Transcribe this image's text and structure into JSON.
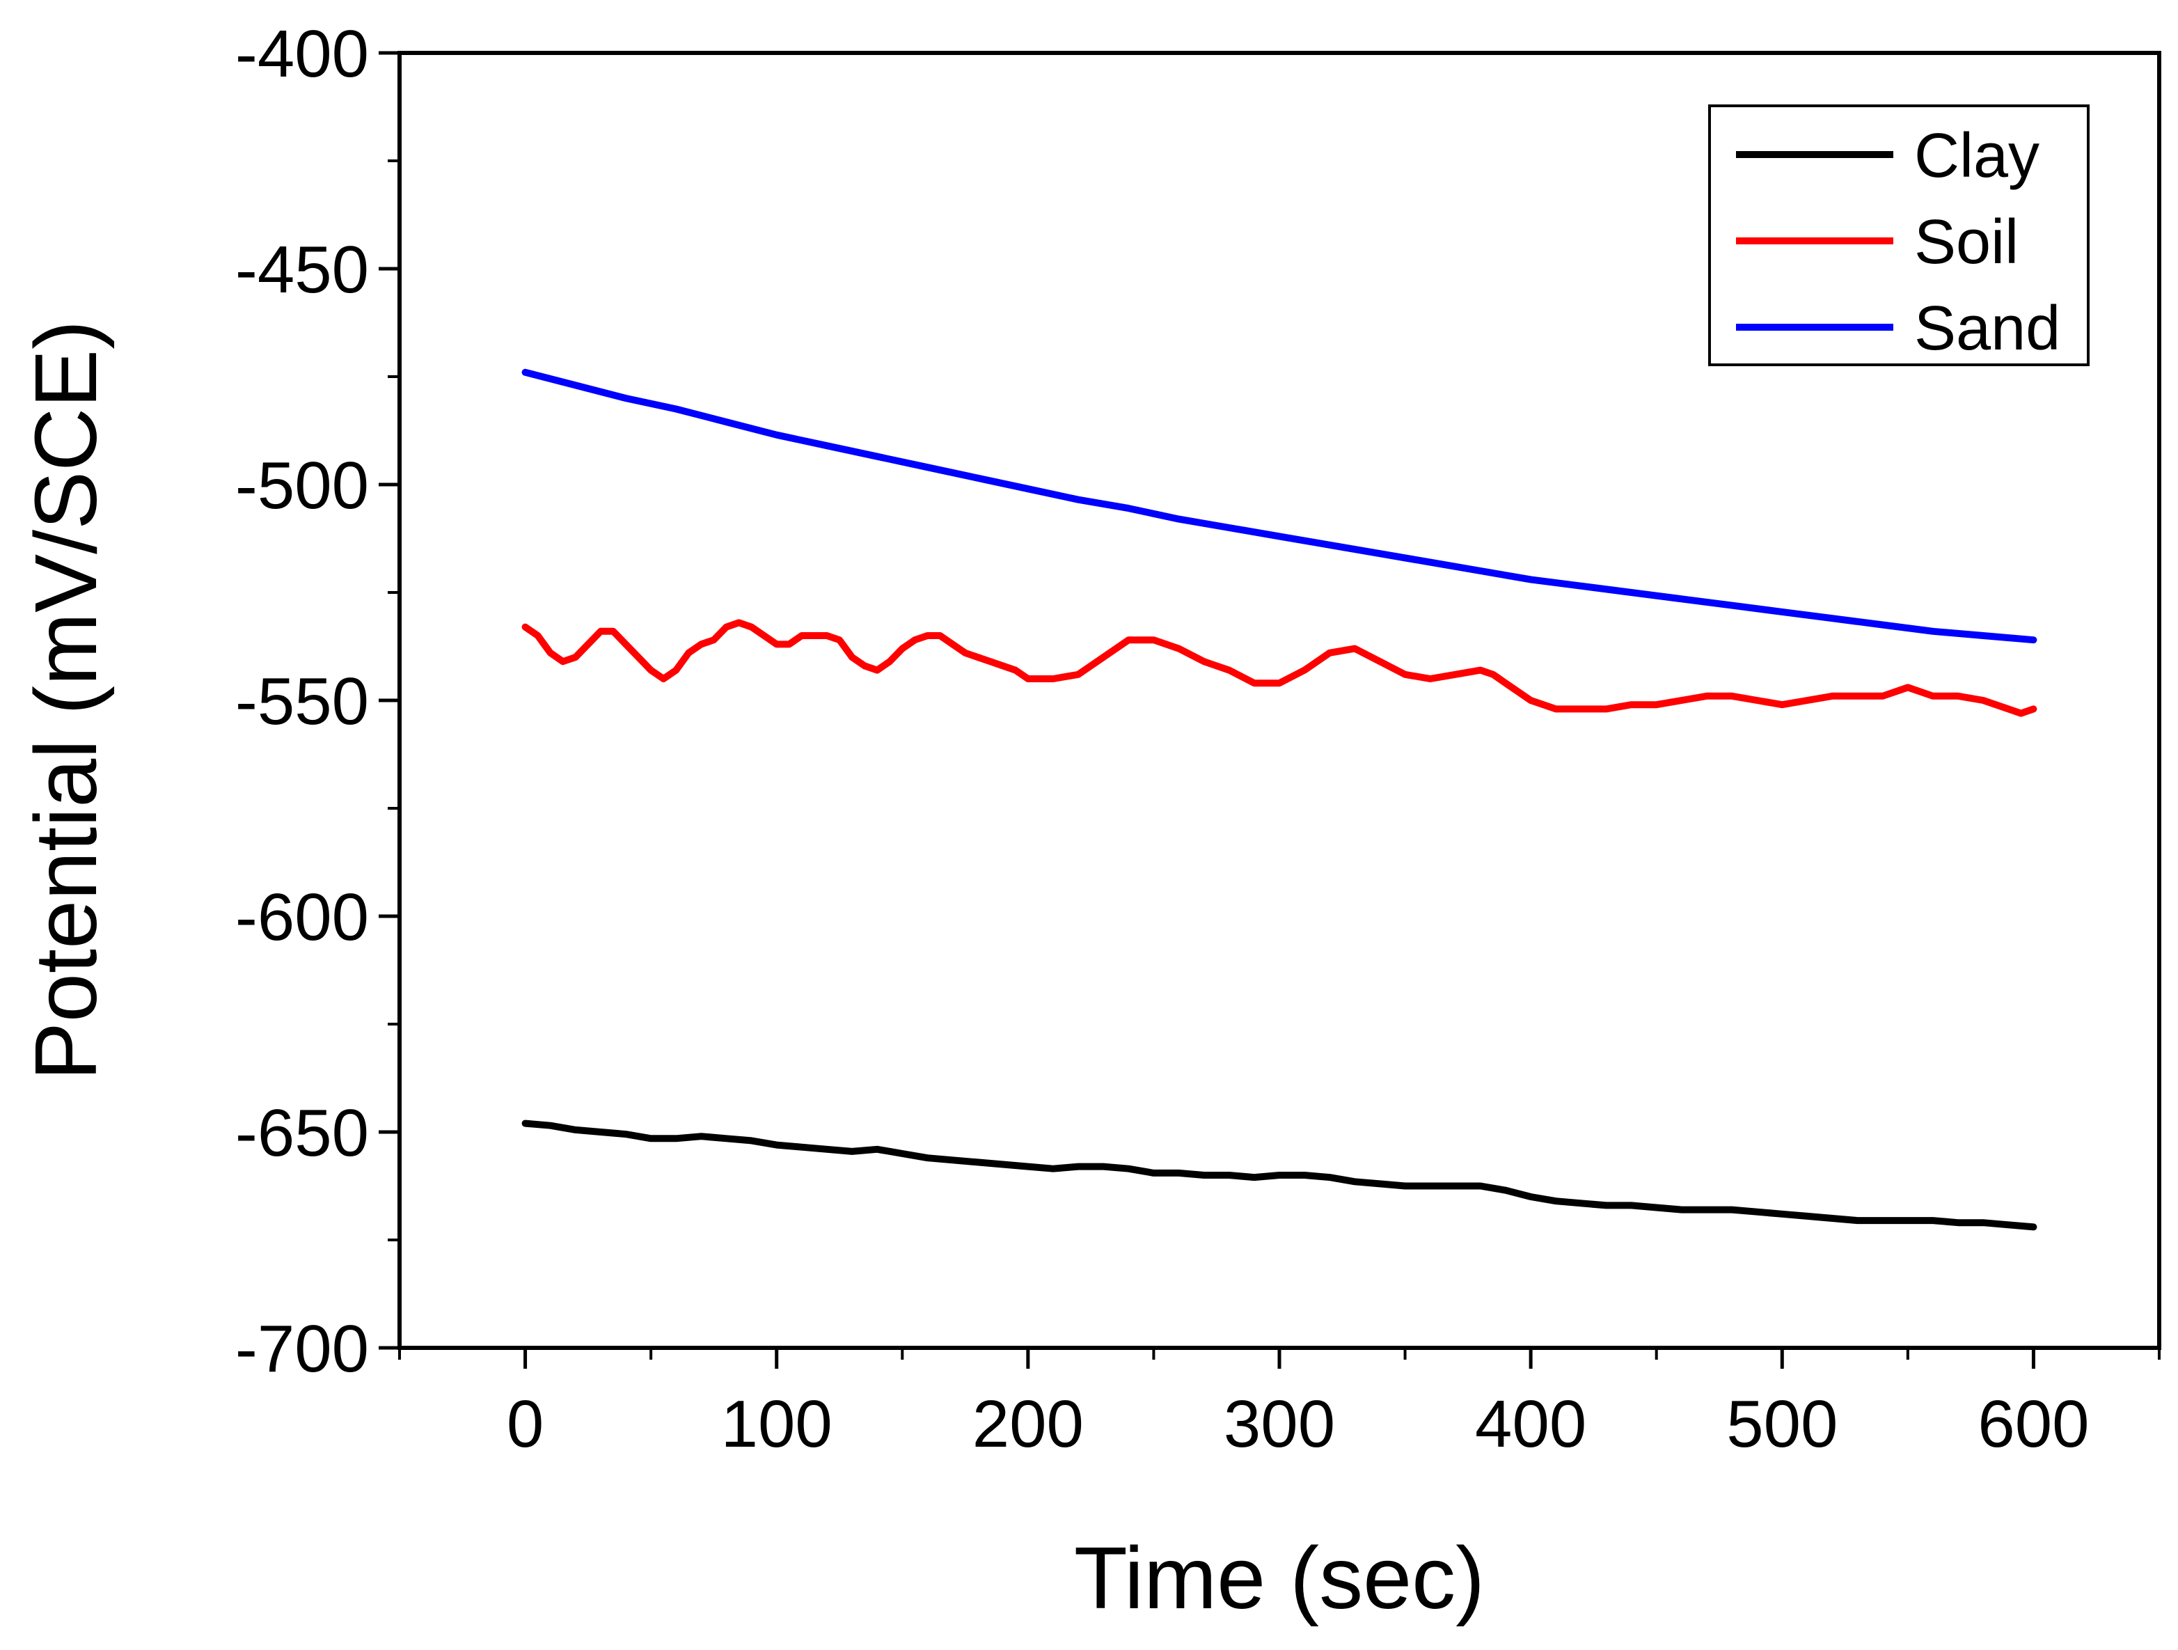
{
  "chart_data": {
    "type": "line",
    "title": "",
    "xlabel": "Time (sec)",
    "ylabel": "Potential (mV/SCE)",
    "xlim": [
      -50,
      650
    ],
    "ylim": [
      -700,
      -400
    ],
    "x_ticks": [
      0,
      100,
      200,
      300,
      400,
      500,
      600
    ],
    "x_tick_labels": [
      "0",
      "100",
      "200",
      "300",
      "400",
      "500",
      "600"
    ],
    "x_minor_ticks": [
      -50,
      50,
      150,
      250,
      350,
      450,
      550,
      650
    ],
    "y_ticks": [
      -400,
      -450,
      -500,
      -550,
      -600,
      -650,
      -700
    ],
    "y_tick_labels": [
      "-400",
      "-450",
      "-500",
      "-550",
      "-600",
      "-650",
      "-700"
    ],
    "y_minor_ticks": [
      -425,
      -475,
      -525,
      -575,
      -625,
      -675
    ],
    "grid": false,
    "legend_position": "top-right",
    "series": [
      {
        "name": "Clay",
        "color": "#000000",
        "points": [
          [
            0,
            -648
          ],
          [
            10,
            -648.5
          ],
          [
            20,
            -649.5
          ],
          [
            30,
            -650
          ],
          [
            40,
            -650.5
          ],
          [
            50,
            -651.5
          ],
          [
            60,
            -651.5
          ],
          [
            70,
            -651
          ],
          [
            80,
            -651.5
          ],
          [
            90,
            -652
          ],
          [
            100,
            -653
          ],
          [
            110,
            -653.5
          ],
          [
            120,
            -654
          ],
          [
            130,
            -654.5
          ],
          [
            140,
            -654
          ],
          [
            150,
            -655
          ],
          [
            160,
            -656
          ],
          [
            170,
            -656.5
          ],
          [
            180,
            -657
          ],
          [
            190,
            -657.5
          ],
          [
            200,
            -658
          ],
          [
            210,
            -658.5
          ],
          [
            220,
            -658
          ],
          [
            230,
            -658
          ],
          [
            240,
            -658.5
          ],
          [
            250,
            -659.5
          ],
          [
            260,
            -659.5
          ],
          [
            270,
            -660
          ],
          [
            280,
            -660
          ],
          [
            290,
            -660.5
          ],
          [
            300,
            -660
          ],
          [
            310,
            -660
          ],
          [
            320,
            -660.5
          ],
          [
            330,
            -661.5
          ],
          [
            340,
            -662
          ],
          [
            350,
            -662.5
          ],
          [
            360,
            -662.5
          ],
          [
            370,
            -662.5
          ],
          [
            380,
            -662.5
          ],
          [
            390,
            -663.5
          ],
          [
            400,
            -665
          ],
          [
            410,
            -666
          ],
          [
            420,
            -666.5
          ],
          [
            430,
            -667
          ],
          [
            440,
            -667
          ],
          [
            450,
            -667.5
          ],
          [
            460,
            -668
          ],
          [
            470,
            -668
          ],
          [
            480,
            -668
          ],
          [
            490,
            -668.5
          ],
          [
            500,
            -669
          ],
          [
            510,
            -669.5
          ],
          [
            520,
            -670
          ],
          [
            530,
            -670.5
          ],
          [
            540,
            -670.5
          ],
          [
            550,
            -670.5
          ],
          [
            560,
            -670.5
          ],
          [
            570,
            -671
          ],
          [
            580,
            -671
          ],
          [
            590,
            -671.5
          ],
          [
            600,
            -672
          ]
        ]
      },
      {
        "name": "Soil",
        "color": "#ff0000",
        "points": [
          [
            0,
            -533
          ],
          [
            5,
            -535
          ],
          [
            10,
            -539
          ],
          [
            15,
            -541
          ],
          [
            20,
            -540
          ],
          [
            25,
            -537
          ],
          [
            30,
            -534
          ],
          [
            35,
            -534
          ],
          [
            40,
            -537
          ],
          [
            45,
            -540
          ],
          [
            50,
            -543
          ],
          [
            55,
            -545
          ],
          [
            60,
            -543
          ],
          [
            65,
            -539
          ],
          [
            70,
            -537
          ],
          [
            75,
            -536
          ],
          [
            80,
            -533
          ],
          [
            85,
            -532
          ],
          [
            90,
            -533
          ],
          [
            95,
            -535
          ],
          [
            100,
            -537
          ],
          [
            105,
            -537
          ],
          [
            110,
            -535
          ],
          [
            115,
            -535
          ],
          [
            120,
            -535
          ],
          [
            125,
            -536
          ],
          [
            130,
            -540
          ],
          [
            135,
            -542
          ],
          [
            140,
            -543
          ],
          [
            145,
            -541
          ],
          [
            150,
            -538
          ],
          [
            155,
            -536
          ],
          [
            160,
            -535
          ],
          [
            165,
            -535
          ],
          [
            170,
            -537
          ],
          [
            175,
            -539
          ],
          [
            180,
            -540
          ],
          [
            185,
            -541
          ],
          [
            190,
            -542
          ],
          [
            195,
            -543
          ],
          [
            200,
            -545
          ],
          [
            210,
            -545
          ],
          [
            220,
            -544
          ],
          [
            230,
            -540
          ],
          [
            240,
            -536
          ],
          [
            250,
            -536
          ],
          [
            260,
            -538
          ],
          [
            270,
            -541
          ],
          [
            280,
            -543
          ],
          [
            290,
            -546
          ],
          [
            300,
            -546
          ],
          [
            310,
            -543
          ],
          [
            320,
            -539
          ],
          [
            330,
            -538
          ],
          [
            340,
            -541
          ],
          [
            350,
            -544
          ],
          [
            360,
            -545
          ],
          [
            370,
            -544
          ],
          [
            380,
            -543
          ],
          [
            385,
            -544
          ],
          [
            390,
            -546
          ],
          [
            400,
            -550
          ],
          [
            410,
            -552
          ],
          [
            420,
            -552
          ],
          [
            430,
            -552
          ],
          [
            440,
            -551
          ],
          [
            450,
            -551
          ],
          [
            460,
            -550
          ],
          [
            470,
            -549
          ],
          [
            480,
            -549
          ],
          [
            490,
            -550
          ],
          [
            500,
            -551
          ],
          [
            510,
            -550
          ],
          [
            520,
            -549
          ],
          [
            530,
            -549
          ],
          [
            540,
            -549
          ],
          [
            545,
            -548
          ],
          [
            550,
            -547
          ],
          [
            560,
            -549
          ],
          [
            570,
            -549
          ],
          [
            580,
            -550
          ],
          [
            590,
            -552
          ],
          [
            595,
            -553
          ],
          [
            600,
            -552
          ]
        ]
      },
      {
        "name": "Sand",
        "color": "#0000ff",
        "points": [
          [
            0,
            -474
          ],
          [
            20,
            -477
          ],
          [
            40,
            -480
          ],
          [
            60,
            -482.5
          ],
          [
            80,
            -485.5
          ],
          [
            100,
            -488.5
          ],
          [
            120,
            -491
          ],
          [
            140,
            -493.5
          ],
          [
            160,
            -496
          ],
          [
            180,
            -498.5
          ],
          [
            200,
            -501
          ],
          [
            220,
            -503.5
          ],
          [
            240,
            -505.5
          ],
          [
            260,
            -508
          ],
          [
            280,
            -510
          ],
          [
            300,
            -512
          ],
          [
            320,
            -514
          ],
          [
            340,
            -516
          ],
          [
            360,
            -518
          ],
          [
            380,
            -520
          ],
          [
            400,
            -522
          ],
          [
            420,
            -523.5
          ],
          [
            440,
            -525
          ],
          [
            460,
            -526.5
          ],
          [
            480,
            -528
          ],
          [
            500,
            -529.5
          ],
          [
            520,
            -531
          ],
          [
            540,
            -532.5
          ],
          [
            560,
            -534
          ],
          [
            580,
            -535
          ],
          [
            600,
            -536
          ]
        ]
      }
    ]
  }
}
